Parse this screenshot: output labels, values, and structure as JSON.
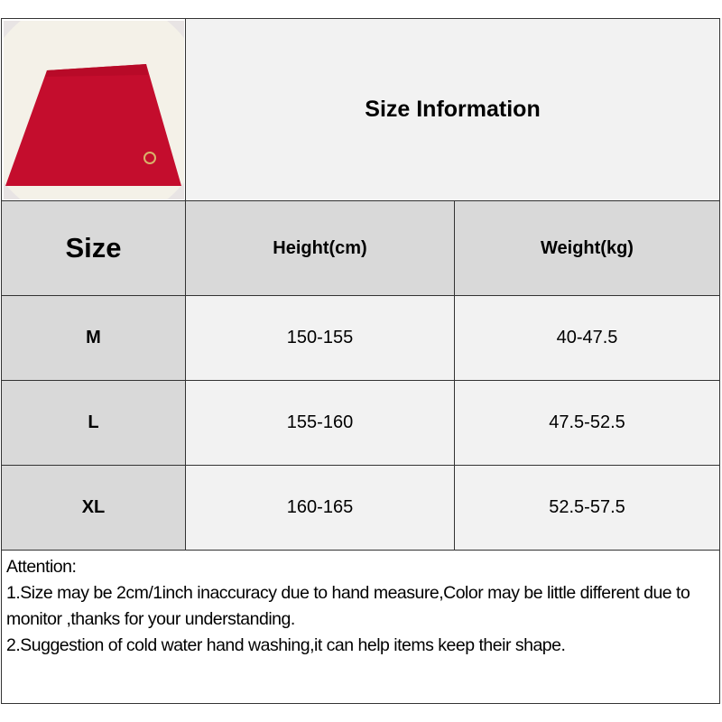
{
  "header": {
    "title": "Size Information"
  },
  "table": {
    "columns": [
      "Size",
      "Height(cm)",
      "Weight(kg)"
    ],
    "rows": [
      {
        "size": "M",
        "height": "150-155",
        "weight": "40-47.5"
      },
      {
        "size": "L",
        "height": "155-160",
        "weight": "47.5-52.5"
      },
      {
        "size": "XL",
        "height": "160-165",
        "weight": "52.5-57.5"
      }
    ]
  },
  "notes": {
    "heading": "Attention:",
    "line1": "1.Size may be 2cm/1inch inaccuracy due to hand measure,Color may be little different due to monitor ,thanks for your understanding.",
    "line2": "2.Suggestion of cold water hand washing,it can help items keep their shape."
  },
  "colors": {
    "product": "#c8102e",
    "header_bg": "#d9d9d9",
    "cell_bg": "#f2f2f2"
  }
}
